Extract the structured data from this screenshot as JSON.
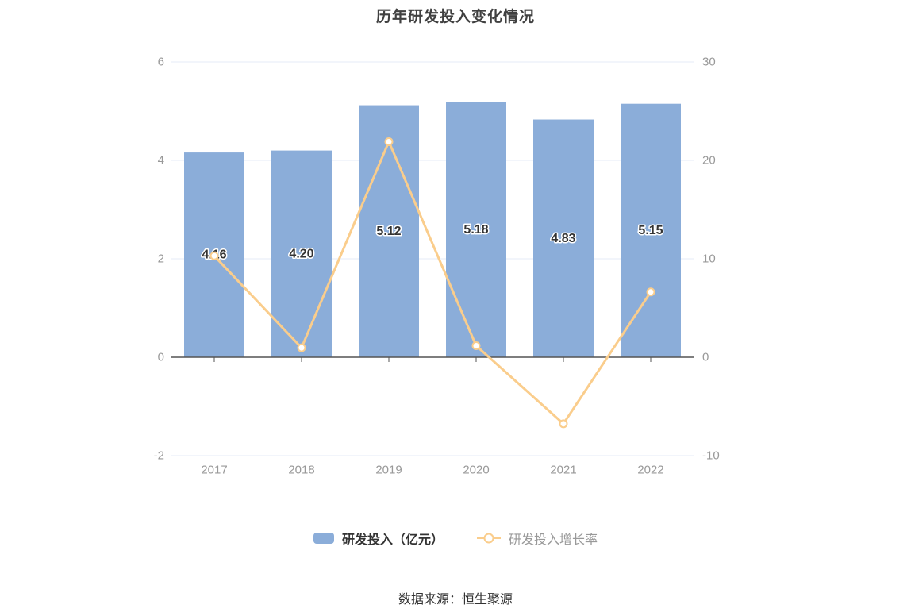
{
  "title": "历年研发投入变化情况",
  "source_note": "数据来源：恒生聚源",
  "legend": [
    {
      "label": "研发投入（亿元）",
      "series_type": "bar"
    },
    {
      "label": "研发投入增长率",
      "series_type": "line"
    }
  ],
  "colors": {
    "bar": "#8badd9",
    "line": "#facd8c",
    "marker_fill": "#ffffff",
    "grid": "#e4ebf7",
    "axis_line": "#545454",
    "axis_text": "#999999",
    "bar_label_text": "#333333",
    "title_text": "#404040",
    "legend_bar_text": "#333333",
    "legend_line_text": "#999999",
    "source_text": "#333333",
    "background": "#ffffff"
  },
  "chart_data": {
    "type": "bar",
    "subtype": "bar-line-combo",
    "title": "历年研发投入变化情况",
    "categories": [
      "2017",
      "2018",
      "2019",
      "2020",
      "2021",
      "2022"
    ],
    "series": [
      {
        "name": "研发投入（亿元）",
        "type": "bar",
        "y_axis": "left",
        "values": [
          4.16,
          4.2,
          5.12,
          5.18,
          4.83,
          5.15
        ],
        "data_labels": [
          "4.16",
          "4.20",
          "5.12",
          "5.18",
          "4.83",
          "5.15"
        ],
        "label_position": "inside-middle"
      },
      {
        "name": "研发投入增长率",
        "type": "line",
        "y_axis": "right",
        "unit": "%",
        "values": [
          10.3,
          0.96,
          21.9,
          1.17,
          -6.76,
          6.63
        ],
        "marker": "hollow-circle"
      }
    ],
    "left_axis": {
      "min": -2,
      "max": 6,
      "tick_interval": 2,
      "tick_labels": [
        "6",
        "4",
        "2",
        "0",
        "-2"
      ]
    },
    "right_axis": {
      "min": -10,
      "max": 30,
      "tick_interval": 10,
      "tick_labels": [
        "30",
        "20",
        "10",
        "0",
        "-10"
      ]
    },
    "grid": true,
    "legend_position": "bottom"
  }
}
